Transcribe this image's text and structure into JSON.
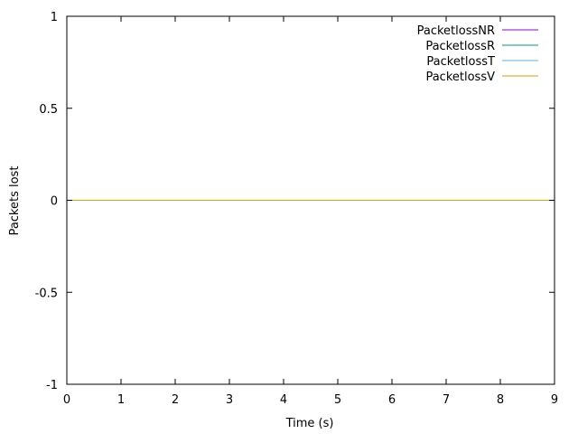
{
  "chart_data": {
    "type": "line",
    "title": "",
    "xlabel": "Time (s)",
    "ylabel": "Packets lost",
    "xlim": [
      0,
      9
    ],
    "ylim": [
      -1,
      1
    ],
    "x_ticks": [
      0,
      1,
      2,
      3,
      4,
      5,
      6,
      7,
      8,
      9
    ],
    "y_ticks": [
      -1,
      -0.5,
      0,
      0.5,
      1
    ],
    "grid": false,
    "legend_position": "top-right",
    "series": [
      {
        "name": "PacketlossNR",
        "color": "#9400d3",
        "x": [
          0,
          9
        ],
        "y": [
          0,
          0
        ]
      },
      {
        "name": "PacketlossR",
        "color": "#009e73",
        "x": [
          0,
          9
        ],
        "y": [
          0,
          0
        ]
      },
      {
        "name": "PacketlossT",
        "color": "#56b4e9",
        "x": [
          0,
          9
        ],
        "y": [
          0,
          0
        ]
      },
      {
        "name": "PacketlossV",
        "color": "#e69f00",
        "x": [
          0,
          9
        ],
        "y": [
          0,
          0
        ]
      }
    ]
  }
}
